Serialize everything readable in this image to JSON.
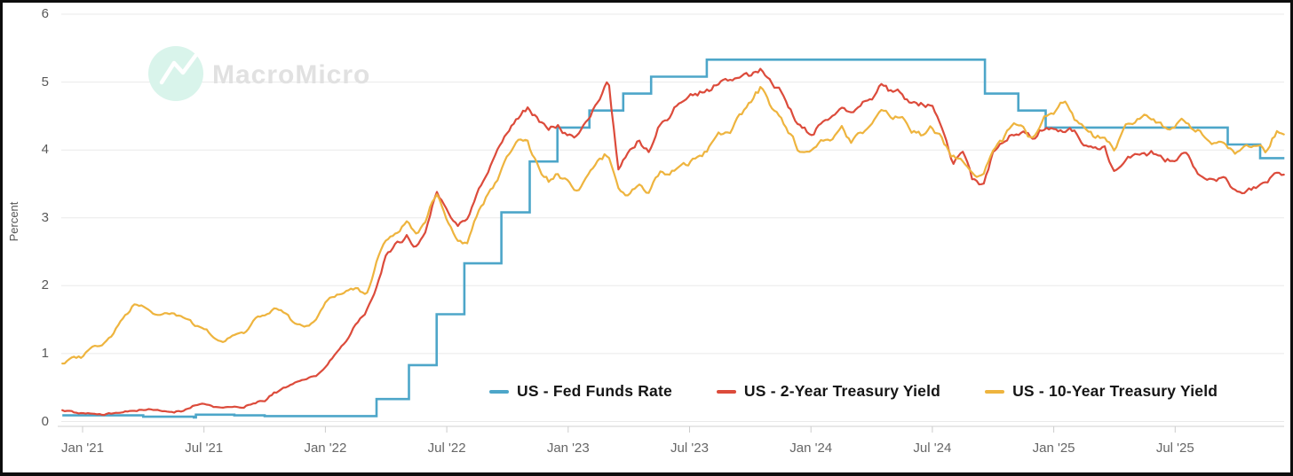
{
  "watermark": {
    "text": "MacroMicro"
  },
  "chart_data": {
    "type": "line",
    "title": "",
    "xlabel": "",
    "ylabel": "Percent",
    "ylim": [
      0,
      6
    ],
    "grid": true,
    "legend_position": "bottom-inside",
    "y_ticks": [
      0,
      1,
      2,
      3,
      4,
      5,
      6
    ],
    "y_tick_labels": [
      "0",
      "1",
      "2",
      "3",
      "4",
      "5",
      "6"
    ],
    "x_unit": "months since Jan 2021 (t=0 is 2021-01-01)",
    "x_ticks": [
      0,
      6,
      12,
      18,
      24,
      30,
      36,
      42,
      48,
      54
    ],
    "x_tick_labels": [
      "Jan '21",
      "Jul '21",
      "Jan '22",
      "Jul '22",
      "Jan '23",
      "Jul '23",
      "Jan '24",
      "Jul '24",
      "Jan '25",
      "Jul '25"
    ],
    "series": [
      {
        "name": "US - Fed Funds Rate",
        "color": "#4da6c9",
        "type": "step",
        "points": [
          [
            -1,
            0.09
          ],
          [
            3,
            0.07
          ],
          [
            5.5,
            0.06
          ],
          [
            5.6,
            0.1
          ],
          [
            7.5,
            0.09
          ],
          [
            9,
            0.08
          ],
          [
            14.53,
            0.33
          ],
          [
            16.13,
            0.83
          ],
          [
            17.5,
            1.58
          ],
          [
            18.87,
            2.33
          ],
          [
            20.7,
            3.08
          ],
          [
            22.1,
            3.83
          ],
          [
            23.47,
            4.33
          ],
          [
            25.05,
            4.58
          ],
          [
            26.72,
            4.83
          ],
          [
            28.1,
            5.08
          ],
          [
            30.85,
            5.33
          ],
          [
            44.6,
            4.83
          ],
          [
            46.25,
            4.58
          ],
          [
            47.6,
            4.33
          ],
          [
            56.6,
            4.08
          ],
          [
            58.2,
            3.88
          ],
          [
            59.4,
            3.88
          ]
        ]
      },
      {
        "name": "US - 2-Year Treasury Yield",
        "color": "#dc4b3b",
        "type": "line",
        "start_t": -1,
        "dt": 0.5,
        "values": [
          0.16,
          0.14,
          0.12,
          0.12,
          0.11,
          0.12,
          0.14,
          0.15,
          0.16,
          0.16,
          0.15,
          0.14,
          0.15,
          0.23,
          0.25,
          0.2,
          0.21,
          0.22,
          0.22,
          0.28,
          0.31,
          0.44,
          0.49,
          0.58,
          0.63,
          0.68,
          0.82,
          1.0,
          1.15,
          1.45,
          1.6,
          1.95,
          2.42,
          2.6,
          2.7,
          2.55,
          2.8,
          3.35,
          3.05,
          2.85,
          2.95,
          3.3,
          3.55,
          3.95,
          4.25,
          4.45,
          4.65,
          4.45,
          4.3,
          4.35,
          4.2,
          4.15,
          4.45,
          4.75,
          5.0,
          3.7,
          4.0,
          4.15,
          3.9,
          4.3,
          4.4,
          4.7,
          4.85,
          4.85,
          4.9,
          5.0,
          4.95,
          5.1,
          5.1,
          5.15,
          4.95,
          4.85,
          4.6,
          4.35,
          4.25,
          4.35,
          4.4,
          4.65,
          4.55,
          4.7,
          4.75,
          5.0,
          4.85,
          4.85,
          4.75,
          4.7,
          4.7,
          4.4,
          3.9,
          4.05,
          3.6,
          3.55,
          3.95,
          4.1,
          4.25,
          4.3,
          4.15,
          4.3,
          4.3,
          4.2,
          4.25,
          4.05,
          3.95,
          4.0,
          3.7,
          3.8,
          3.95,
          4.0,
          3.95,
          3.85,
          3.85,
          3.95,
          3.7,
          3.6,
          3.55,
          3.6,
          3.48,
          3.45,
          3.52,
          3.58,
          3.62
        ]
      },
      {
        "name": "US - 10-Year Treasury Yield",
        "color": "#eeb43e",
        "type": "line",
        "start_t": -1,
        "dt": 0.5,
        "values": [
          0.84,
          0.92,
          0.93,
          1.1,
          1.12,
          1.3,
          1.5,
          1.7,
          1.7,
          1.58,
          1.6,
          1.62,
          1.55,
          1.46,
          1.38,
          1.25,
          1.2,
          1.3,
          1.33,
          1.5,
          1.6,
          1.68,
          1.6,
          1.45,
          1.42,
          1.48,
          1.75,
          1.85,
          1.95,
          1.95,
          1.85,
          2.35,
          2.7,
          2.85,
          3.0,
          2.8,
          3.05,
          3.4,
          2.95,
          2.7,
          2.62,
          3.05,
          3.3,
          3.6,
          3.9,
          4.2,
          4.1,
          3.8,
          3.55,
          3.65,
          3.5,
          3.4,
          3.65,
          3.9,
          3.95,
          3.5,
          3.4,
          3.55,
          3.4,
          3.65,
          3.7,
          3.75,
          3.85,
          3.9,
          4.05,
          4.25,
          4.25,
          4.5,
          4.7,
          4.9,
          4.6,
          4.45,
          4.2,
          3.9,
          3.95,
          4.1,
          4.15,
          4.3,
          4.1,
          4.2,
          4.4,
          4.65,
          4.5,
          4.45,
          4.3,
          4.25,
          4.35,
          4.2,
          3.95,
          3.85,
          3.7,
          3.65,
          4.05,
          4.2,
          4.4,
          4.4,
          4.2,
          4.55,
          4.6,
          4.75,
          4.5,
          4.4,
          4.2,
          4.25,
          4.0,
          4.45,
          4.45,
          4.5,
          4.4,
          4.3,
          4.35,
          4.45,
          4.25,
          4.2,
          4.1,
          4.1,
          3.95,
          4.0,
          4.05,
          3.95,
          4.22
        ]
      }
    ]
  }
}
